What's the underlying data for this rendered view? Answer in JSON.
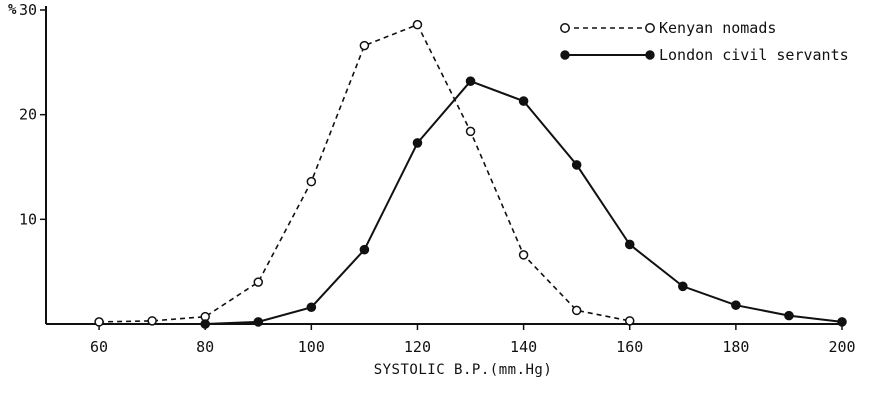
{
  "chart_data": {
    "type": "line",
    "xlabel": "SYSTOLIC B.P.(mm.Hg)",
    "ylabel": "%",
    "xlim": [
      50,
      200
    ],
    "ylim": [
      0,
      30
    ],
    "xticks": [
      60,
      80,
      100,
      120,
      140,
      160,
      180,
      200
    ],
    "yticks": [
      10,
      20,
      30
    ],
    "grid": false,
    "legend_position": "top-right",
    "series": [
      {
        "name": "Kenyan nomads",
        "style": "dashed",
        "marker": "open-circle",
        "x": [
          60,
          70,
          80,
          90,
          100,
          110,
          120,
          130,
          140,
          150,
          160
        ],
        "y": [
          0.2,
          0.3,
          0.7,
          4.0,
          13.6,
          26.6,
          28.6,
          18.4,
          6.6,
          1.3,
          0.3
        ]
      },
      {
        "name": "London civil servants",
        "style": "solid",
        "marker": "filled-circle",
        "x": [
          80,
          90,
          100,
          110,
          120,
          130,
          140,
          150,
          160,
          170,
          180,
          190,
          200
        ],
        "y": [
          0.0,
          0.2,
          1.6,
          7.1,
          17.3,
          23.2,
          21.3,
          15.2,
          7.6,
          3.6,
          1.8,
          0.8,
          0.2
        ]
      }
    ],
    "colors": {
      "line": "#111111",
      "background": "#ffffff"
    }
  }
}
